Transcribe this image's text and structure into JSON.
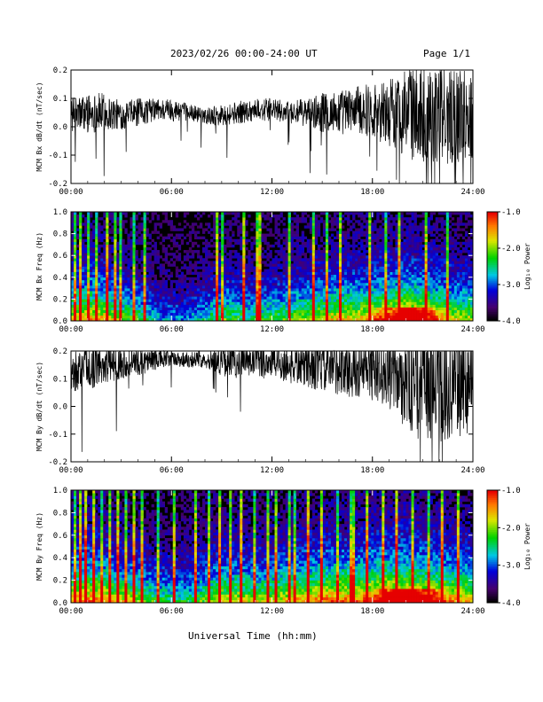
{
  "header": {
    "title": "2023/02/26  00:00-24:00 UT",
    "page": "Page 1/1"
  },
  "xlabel": "Universal Time (hh:mm)",
  "colorbar_label": "Log₁₀ Power",
  "chart_data": [
    {
      "type": "line",
      "ylabel": "MCM Bx dB/dt (nT/sec)",
      "x_ticks": [
        "00:00",
        "06:00",
        "12:00",
        "18:00",
        "24:00"
      ],
      "y_ticks": [
        -0.2,
        -0.1,
        0.0,
        0.1,
        0.2
      ],
      "xlim": [
        0,
        24
      ],
      "ylim": [
        -0.2,
        0.2
      ],
      "series": [
        {
          "values": [
            0.04,
            0.05,
            0.05,
            0.04,
            0.05,
            0.06,
            0.06,
            0.05,
            0.04,
            0.04,
            0.05,
            0.06,
            0.06,
            0.05,
            0.05,
            0.05,
            0.05,
            0.06,
            0.06,
            0.05,
            0.05,
            0.05,
            0.04,
            0.04,
            0.04
          ],
          "amplitude": [
            0.06,
            0.07,
            0.07,
            0.05,
            0.05,
            0.04,
            0.04,
            0.03,
            0.03,
            0.04,
            0.04,
            0.04,
            0.04,
            0.04,
            0.05,
            0.07,
            0.08,
            0.08,
            0.1,
            0.12,
            0.16,
            0.18,
            0.18,
            0.17,
            0.16
          ]
        }
      ]
    },
    {
      "type": "heatmap",
      "ylabel": "MCM Bx Freq (Hz)",
      "x_ticks": [
        "00:00",
        "06:00",
        "12:00",
        "18:00",
        "24:00"
      ],
      "y_ticks": [
        0.0,
        0.2,
        0.4,
        0.6,
        0.8,
        1.0
      ],
      "xlim": [
        0,
        24
      ],
      "ylim": [
        0.0,
        1.0
      ],
      "colorbar": {
        "range": [
          -4.0,
          -1.0
        ],
        "ticks": [
          -1.0,
          -2.0,
          -3.0,
          -4.0
        ]
      },
      "activity": [
        0.7,
        0.8,
        0.75,
        0.6,
        0.55,
        0.4,
        0.35,
        0.35,
        0.45,
        0.6,
        0.55,
        0.5,
        0.55,
        0.6,
        0.65,
        0.7,
        0.75,
        0.75,
        0.8,
        0.85,
        0.9,
        0.85,
        0.75,
        0.7,
        0.65
      ],
      "bursts": [
        0.3,
        0.6,
        1.1,
        1.5,
        2.1,
        2.6,
        3.0,
        3.7,
        4.4,
        8.7,
        9.1,
        10.3,
        11.2,
        13.1,
        14.5,
        15.3,
        16.1,
        17.9,
        18.8,
        19.6,
        21.2,
        22.5
      ]
    },
    {
      "type": "line",
      "ylabel": "MCM By dB/dt (nT/sec)",
      "x_ticks": [
        "00:00",
        "06:00",
        "12:00",
        "18:00",
        "24:00"
      ],
      "y_ticks": [
        -0.2,
        -0.1,
        0.0,
        0.1,
        0.2
      ],
      "xlim": [
        0,
        24
      ],
      "ylim": [
        -0.2,
        0.2
      ],
      "series": [
        {
          "values": [
            0.12,
            0.14,
            0.15,
            0.16,
            0.16,
            0.17,
            0.17,
            0.17,
            0.17,
            0.16,
            0.16,
            0.16,
            0.16,
            0.15,
            0.15,
            0.14,
            0.14,
            0.13,
            0.13,
            0.12,
            0.1,
            0.08,
            0.08,
            0.09,
            0.1
          ],
          "amplitude": [
            0.07,
            0.08,
            0.07,
            0.06,
            0.05,
            0.04,
            0.03,
            0.03,
            0.03,
            0.05,
            0.06,
            0.06,
            0.06,
            0.07,
            0.08,
            0.09,
            0.1,
            0.1,
            0.11,
            0.13,
            0.18,
            0.22,
            0.22,
            0.2,
            0.2
          ]
        }
      ]
    },
    {
      "type": "heatmap",
      "ylabel": "MCM By Freq (Hz)",
      "x_ticks": [
        "00:00",
        "06:00",
        "12:00",
        "18:00",
        "24:00"
      ],
      "y_ticks": [
        0.0,
        0.2,
        0.4,
        0.6,
        0.8,
        1.0
      ],
      "xlim": [
        0,
        24
      ],
      "ylim": [
        0.0,
        1.0
      ],
      "colorbar": {
        "range": [
          -4.0,
          -1.0
        ],
        "ticks": [
          -1.0,
          -2.0,
          -3.0,
          -4.0
        ]
      },
      "activity": [
        0.8,
        0.85,
        0.8,
        0.7,
        0.65,
        0.55,
        0.5,
        0.5,
        0.6,
        0.7,
        0.7,
        0.65,
        0.7,
        0.75,
        0.8,
        0.85,
        0.85,
        0.85,
        0.9,
        0.95,
        0.95,
        0.9,
        0.85,
        0.8,
        0.75
      ],
      "bursts": [
        0.2,
        0.5,
        0.9,
        1.3,
        1.8,
        2.3,
        2.8,
        3.3,
        3.8,
        4.3,
        5.2,
        6.1,
        7.4,
        8.2,
        8.9,
        9.5,
        10.2,
        11.0,
        11.8,
        12.3,
        13.0,
        13.4,
        14.2,
        15.0,
        15.9,
        16.8,
        17.7,
        18.6,
        19.5,
        20.4,
        21.3,
        22.2,
        23.1
      ]
    }
  ]
}
